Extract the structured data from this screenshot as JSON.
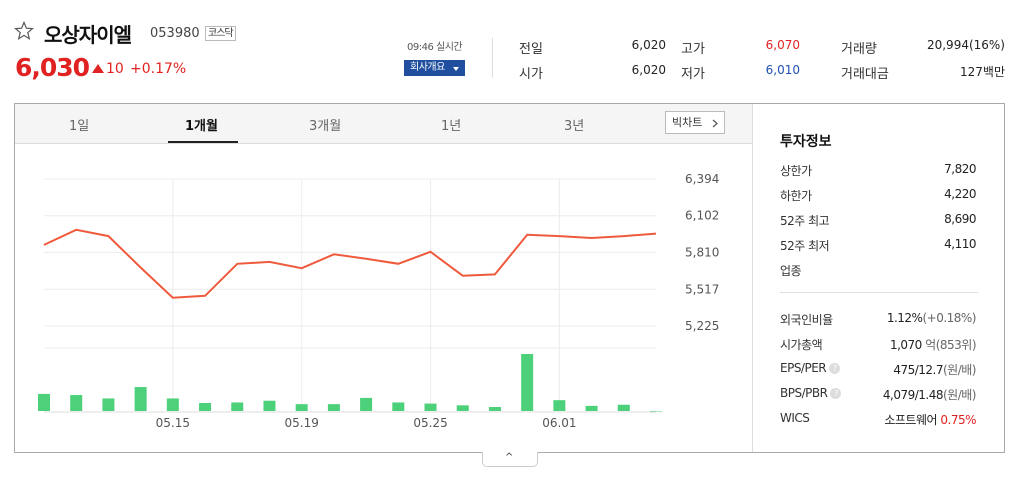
{
  "stock": {
    "name": "오상자이엘",
    "code": "053980",
    "market": "코스닥",
    "price": "6,030",
    "change": "10",
    "change_pct": "+0.17%",
    "realtime": "09:46 실시간",
    "company_button": "회사개요"
  },
  "quotes": {
    "prev_label": "전일",
    "prev": "6,020",
    "open_label": "시가",
    "open": "6,020",
    "high_label": "고가",
    "high": "6,070",
    "low_label": "저가",
    "low": "6,010",
    "volume_label": "거래량",
    "volume": "20,994(16%)",
    "amount_label": "거래대금",
    "amount": "127백만"
  },
  "tabs": [
    "1일",
    "1개월",
    "3개월",
    "1년",
    "3년"
  ],
  "active_tab": "1개월",
  "big_chart_label": "빅차트",
  "chart_data": {
    "type": "line",
    "title": "",
    "price_ticks": [
      "6,394",
      "6,102",
      "5,810",
      "5,517",
      "5,225"
    ],
    "x_labels": [
      "05.15",
      "05.19",
      "05.25",
      "06.01"
    ],
    "ylim": [
      5225,
      6394
    ],
    "price": [
      5870,
      5990,
      5940,
      5690,
      5450,
      5465,
      5720,
      5735,
      5685,
      5795,
      5760,
      5720,
      5815,
      5625,
      5635,
      5950,
      5940,
      5925,
      5940,
      5960
    ],
    "volume": [
      30,
      28,
      22,
      42,
      22,
      14,
      15,
      18,
      12,
      12,
      23,
      15,
      13,
      10,
      7,
      100,
      19,
      9,
      11,
      0
    ],
    "line_color": "#f05a3c",
    "bar_color": "#4cd07a"
  },
  "invest_info": {
    "title": "투자정보",
    "upper_limit_label": "상한가",
    "upper_limit": "7,820",
    "lower_limit_label": "하한가",
    "lower_limit": "4,220",
    "high52_label": "52주 최고",
    "high52": "8,690",
    "low52_label": "52주 최저",
    "low52": "4,110",
    "industry_label": "업종",
    "foreign_label": "외국인비율",
    "foreign": "1.12%",
    "foreign_change": "(+0.18%)",
    "mcap_label": "시가총액",
    "mcap": "1,070",
    "mcap_unit": "억",
    "mcap_rank": "(853위)",
    "eps_label": "EPS/PER",
    "eps": "475/12.7",
    "eps_unit": "(원/배)",
    "bps_label": "BPS/PBR",
    "bps": "4,079/1.48",
    "bps_unit": "(원/배)",
    "wics_label": "WICS",
    "wics": "소프트웨어",
    "wics_pct": "0.75%"
  },
  "collapse_symbol": "^"
}
